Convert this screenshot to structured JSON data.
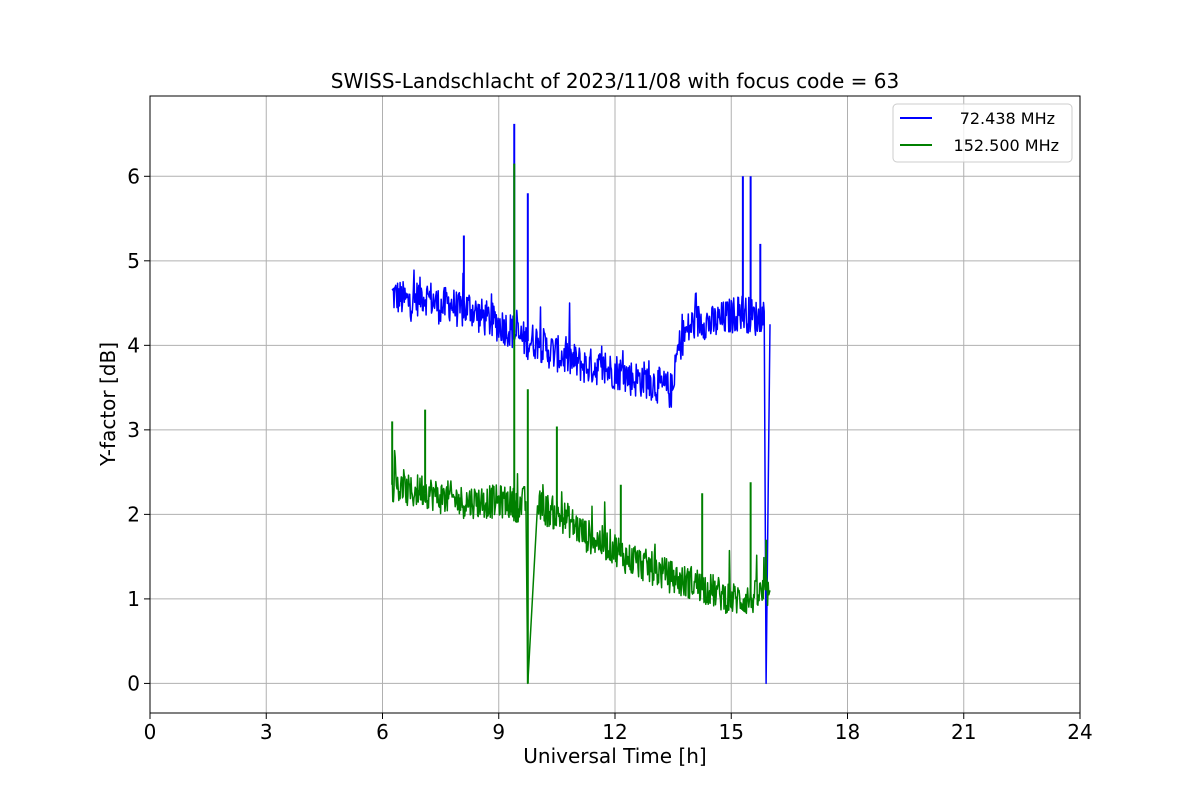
{
  "chart_data": {
    "type": "line",
    "title": "SWISS-Landschlacht of 2023/11/08 with focus code = 63",
    "xlabel": "Universal Time [h]",
    "ylabel": "Y-factor [dB]",
    "xlim": [
      0,
      24
    ],
    "ylim": [
      -0.35,
      6.95
    ],
    "xticks": [
      0,
      3,
      6,
      9,
      12,
      15,
      18,
      21,
      24
    ],
    "yticks": [
      0,
      1,
      2,
      3,
      4,
      5,
      6
    ],
    "grid": true,
    "legend_position": "top-right",
    "series": [
      {
        "name": "72.438 MHz",
        "color": "#0000ff",
        "x": [
          6.25,
          6.5,
          6.75,
          7.0,
          7.25,
          7.5,
          7.75,
          8.0,
          8.25,
          8.5,
          8.75,
          9.0,
          9.25,
          9.4,
          9.5,
          9.75,
          10.0,
          10.25,
          10.5,
          10.75,
          11.0,
          11.25,
          11.5,
          11.75,
          12.0,
          12.25,
          12.5,
          12.75,
          13.0,
          13.25,
          13.5,
          13.6,
          13.75,
          14.0,
          14.25,
          14.5,
          14.75,
          15.0,
          15.25,
          15.5,
          15.75,
          15.85,
          15.9,
          16.0
        ],
        "values": [
          4.6,
          4.55,
          4.5,
          4.6,
          4.55,
          4.45,
          4.5,
          4.4,
          4.45,
          4.35,
          4.3,
          4.25,
          4.2,
          4.15,
          4.1,
          4.05,
          4.05,
          3.95,
          3.9,
          3.85,
          3.8,
          3.75,
          3.75,
          3.7,
          3.7,
          3.65,
          3.6,
          3.6,
          3.55,
          3.5,
          3.45,
          3.9,
          4.1,
          4.25,
          4.3,
          4.25,
          4.3,
          4.35,
          4.4,
          4.35,
          4.3,
          4.4,
          0.0,
          4.25
        ],
        "peaks": [
          {
            "x": 9.4,
            "y": 6.62
          },
          {
            "x": 9.75,
            "y": 5.8
          },
          {
            "x": 8.1,
            "y": 5.3
          },
          {
            "x": 15.3,
            "y": 6.0
          },
          {
            "x": 15.5,
            "y": 6.0
          },
          {
            "x": 15.75,
            "y": 5.2
          }
        ]
      },
      {
        "name": "152.500 MHz",
        "color": "#008000",
        "x": [
          6.25,
          6.5,
          6.75,
          7.0,
          7.25,
          7.5,
          7.75,
          8.0,
          8.25,
          8.5,
          8.75,
          9.0,
          9.25,
          9.5,
          9.7,
          9.75,
          10.0,
          10.25,
          10.5,
          10.75,
          11.0,
          11.25,
          11.5,
          11.75,
          12.0,
          12.25,
          12.5,
          12.75,
          13.0,
          13.25,
          13.5,
          13.75,
          14.0,
          14.25,
          14.5,
          14.75,
          15.0,
          15.25,
          15.5,
          15.75,
          16.0
        ],
        "values": [
          2.35,
          2.3,
          2.25,
          2.3,
          2.25,
          2.2,
          2.2,
          2.15,
          2.15,
          2.15,
          2.15,
          2.15,
          2.15,
          2.1,
          2.15,
          0.0,
          2.1,
          2.05,
          2.0,
          1.95,
          1.85,
          1.75,
          1.7,
          1.65,
          1.6,
          1.5,
          1.45,
          1.4,
          1.35,
          1.3,
          1.25,
          1.2,
          1.2,
          1.15,
          1.1,
          1.05,
          1.0,
          1.0,
          1.0,
          1.05,
          1.1
        ],
        "peaks": [
          {
            "x": 9.4,
            "y": 6.15
          },
          {
            "x": 9.75,
            "y": 3.48
          },
          {
            "x": 10.5,
            "y": 3.04
          },
          {
            "x": 7.1,
            "y": 3.24
          },
          {
            "x": 6.25,
            "y": 3.1
          },
          {
            "x": 12.15,
            "y": 2.35
          },
          {
            "x": 14.25,
            "y": 2.25
          },
          {
            "x": 15.5,
            "y": 2.38
          },
          {
            "x": 15.9,
            "y": 1.7
          }
        ]
      }
    ]
  }
}
